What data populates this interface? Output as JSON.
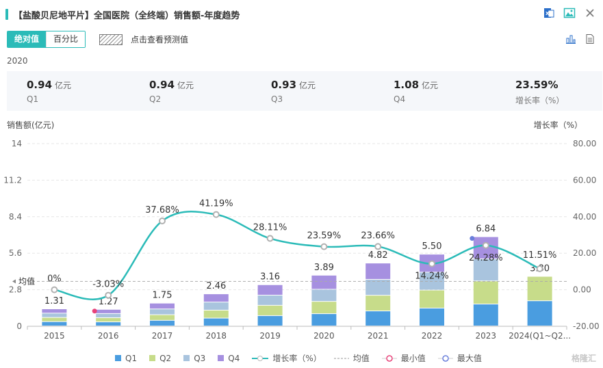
{
  "title": "【盐酸贝尼地平片】全国医院（全终端）销售额-年度趋势",
  "toolbar": {
    "tab_absolute": "绝对值",
    "tab_percent": "百分比",
    "forecast_label": "点击查看预测值"
  },
  "icons": [
    "excel-export-icon",
    "image-export-icon",
    "close-icon",
    "bar-chart-icon",
    "table-icon"
  ],
  "selected_year": "2020",
  "summary": [
    {
      "value": "0.94",
      "unit": "亿元",
      "label": "Q1"
    },
    {
      "value": "0.94",
      "unit": "亿元",
      "label": "Q2"
    },
    {
      "value": "0.93",
      "unit": "亿元",
      "label": "Q3"
    },
    {
      "value": "1.08",
      "unit": "亿元",
      "label": "Q4"
    },
    {
      "value": "23.59%",
      "unit": "",
      "label": "增长率（%）"
    }
  ],
  "axis": {
    "left_title": "销售额(亿元)",
    "right_title": "增长率（%）",
    "avg_label": "均值"
  },
  "legend": {
    "q1": "Q1",
    "q2": "Q2",
    "q3": "Q3",
    "q4": "Q4",
    "growth": "增长率（%）",
    "avg": "均值",
    "min": "最小值",
    "max": "最大值"
  },
  "colors": {
    "accent": "#2bbbb8",
    "q1": "#4a9de0",
    "q2": "#c7dc8a",
    "q3": "#a9c4de",
    "q4": "#a690e0",
    "growth_line": "#2bbbb8",
    "min_marker": "#e8437a",
    "max_marker": "#6a7fdb"
  },
  "watermark": "格隆汇",
  "chart_data": {
    "type": "bar",
    "stacked": true,
    "categories": [
      "2015",
      "2016",
      "2017",
      "2018",
      "2019",
      "2020",
      "2021",
      "2022",
      "2023",
      "2024(Q1~Q2..."
    ],
    "series": [
      {
        "name": "Q1",
        "values": [
          0.33,
          0.31,
          0.43,
          0.6,
          0.79,
          0.94,
          1.15,
          1.37,
          1.68,
          1.93
        ]
      },
      {
        "name": "Q2",
        "values": [
          0.32,
          0.32,
          0.43,
          0.61,
          0.79,
          0.94,
          1.2,
          1.38,
          1.77,
          1.87
        ]
      },
      {
        "name": "Q3",
        "values": [
          0.33,
          0.32,
          0.44,
          0.62,
          0.78,
          0.93,
          1.22,
          1.37,
          1.69,
          0
        ]
      },
      {
        "name": "Q4",
        "values": [
          0.33,
          0.32,
          0.45,
          0.63,
          0.8,
          1.08,
          1.25,
          1.38,
          1.7,
          0
        ]
      }
    ],
    "totals": [
      "1.31",
      "1.27",
      "1.75",
      "2.46",
      "3.16",
      "3.89",
      "4.82",
      "5.50",
      "6.84",
      "3.80"
    ],
    "growth": {
      "name": "增长率（%）",
      "values": [
        0,
        -3.03,
        37.68,
        41.19,
        28.11,
        23.59,
        23.66,
        14.24,
        24.28,
        11.51
      ],
      "labels": [
        "0%",
        "-3.03%",
        "37.68%",
        "41.19%",
        "28.11%",
        "23.59%",
        "23.66%",
        "14.24%",
        "24.28%",
        "11.51%"
      ]
    },
    "average_growth": 4.6,
    "min_index": 1,
    "max_index": 8,
    "y_left": {
      "ticks": [
        "0",
        "2.8",
        "5.6",
        "8.4",
        "11.2",
        "14"
      ],
      "range": [
        0,
        14
      ]
    },
    "y_right": {
      "ticks": [
        "-20.00",
        "0.00",
        "20.00",
        "40.00",
        "60.00",
        "80.00"
      ],
      "range": [
        -20,
        80
      ]
    },
    "grid": true,
    "legend_position": "bottom"
  }
}
